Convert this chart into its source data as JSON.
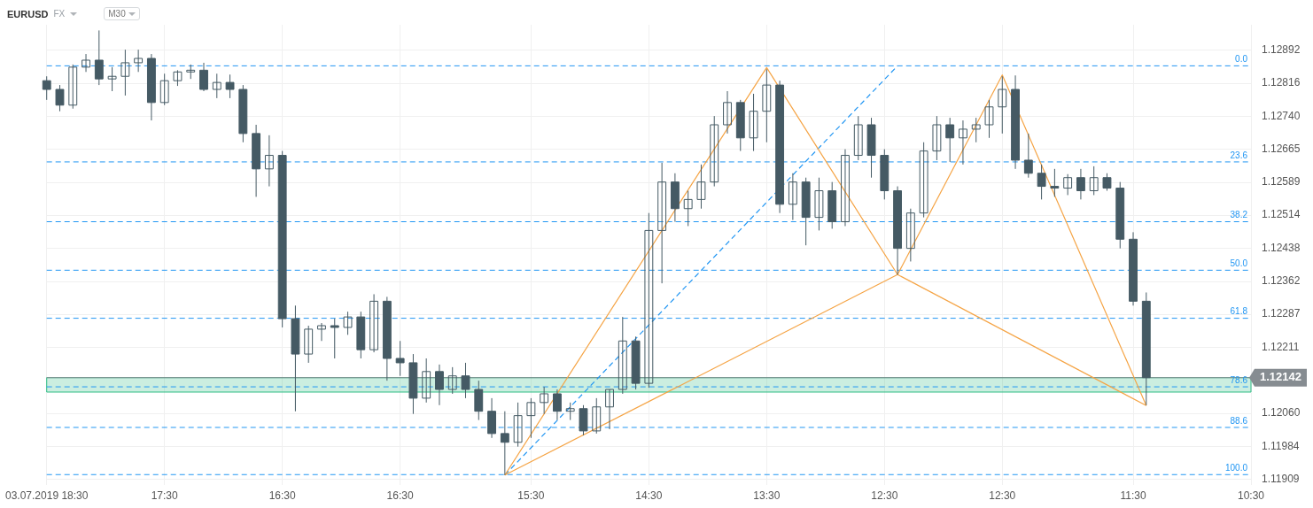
{
  "chart_data": {
    "type": "candlestick",
    "title": "EURUSD",
    "subtitle": "FX",
    "color": "#455a64",
    "annotations": [
      "M30",
      {
        "text": "0.0",
        "y": 1.12856
      },
      {
        "text": "23.6",
        "y": 1.12636
      },
      {
        "text": "38.2",
        "y": 1.12499
      },
      {
        "text": "50.0",
        "y": 1.12388
      },
      {
        "text": "61.8",
        "y": 1.12278
      },
      {
        "text": "78.6",
        "y": 1.12121
      },
      {
        "text": "88.6",
        "y": 1.12028
      },
      {
        "text": "100.0",
        "y": 1.1192
      }
    ],
    "categories": [
      "03.07.2019 18:30",
      null,
      null,
      null,
      null,
      null,
      null,
      null,
      null,
      "17:30",
      null,
      null,
      null,
      null,
      null,
      null,
      null,
      null,
      "16:30",
      null,
      null,
      null,
      null,
      null,
      null,
      null,
      null,
      "16:30",
      null,
      null,
      null,
      null,
      null,
      null,
      null,
      null,
      null,
      "15:30",
      null,
      null,
      null,
      null,
      null,
      null,
      null,
      null,
      "14:30",
      null,
      null,
      null,
      null,
      null,
      null,
      null,
      null,
      "13:30",
      null,
      null,
      null,
      null,
      null,
      null,
      null,
      null,
      "12:30",
      null,
      null,
      null,
      null,
      null,
      null,
      null,
      null,
      "12:30",
      null,
      null,
      null,
      null,
      null,
      null,
      null,
      null,
      null,
      "11:30",
      null,
      null,
      null,
      null,
      null,
      null,
      null,
      null,
      "10:30"
    ],
    "ohlc": [
      [
        1.12822,
        1.12832,
        1.12778,
        1.12802
      ],
      [
        1.12802,
        1.12812,
        1.12752,
        1.12766
      ],
      [
        1.12766,
        1.12859,
        1.12758,
        1.12853
      ],
      [
        1.12853,
        1.12883,
        1.12842,
        1.12869
      ],
      [
        1.12869,
        1.12937,
        1.12812,
        1.12826
      ],
      [
        1.12826,
        1.12853,
        1.12798,
        1.12832
      ],
      [
        1.12832,
        1.12893,
        1.12788,
        1.12863
      ],
      [
        1.12863,
        1.12893,
        1.12842,
        1.12873
      ],
      [
        1.12873,
        1.12883,
        1.12731,
        1.12772
      ],
      [
        1.12772,
        1.12838,
        1.12766,
        1.12822
      ],
      [
        1.12822,
        1.12846,
        1.1281,
        1.12842
      ],
      [
        1.12842,
        1.12859,
        1.12826,
        1.12846
      ],
      [
        1.12846,
        1.12863,
        1.12798,
        1.12802
      ],
      [
        1.12802,
        1.12838,
        1.12782,
        1.12818
      ],
      [
        1.12818,
        1.12836,
        1.12782,
        1.12802
      ],
      [
        1.12802,
        1.12812,
        1.12681,
        1.12701
      ],
      [
        1.12701,
        1.12721,
        1.12556,
        1.1262
      ],
      [
        1.1262,
        1.12697,
        1.1258,
        1.12651
      ],
      [
        1.12651,
        1.12661,
        1.12257,
        1.12277
      ],
      [
        1.12277,
        1.12307,
        1.12065,
        1.12196
      ],
      [
        1.12196,
        1.12261,
        1.12176,
        1.12253
      ],
      [
        1.12253,
        1.12267,
        1.12226,
        1.12261
      ],
      [
        1.12261,
        1.12277,
        1.12186,
        1.12257
      ],
      [
        1.12257,
        1.12293,
        1.1224,
        1.12281
      ],
      [
        1.12281,
        1.12293,
        1.12186,
        1.12206
      ],
      [
        1.12206,
        1.12333,
        1.122,
        1.12317
      ],
      [
        1.12317,
        1.12327,
        1.12135,
        1.12186
      ],
      [
        1.12186,
        1.12226,
        1.12146,
        1.12176
      ],
      [
        1.12176,
        1.12196,
        1.12059,
        1.12095
      ],
      [
        1.12095,
        1.12186,
        1.12085,
        1.12156
      ],
      [
        1.12156,
        1.12172,
        1.12079,
        1.12115
      ],
      [
        1.12115,
        1.12166,
        1.12105,
        1.12146
      ],
      [
        1.12146,
        1.12176,
        1.12095,
        1.12115
      ],
      [
        1.12115,
        1.12135,
        1.12045,
        1.12065
      ],
      [
        1.12065,
        1.12095,
        1.12004,
        1.12014
      ],
      [
        1.12014,
        1.12065,
        1.11919,
        1.11994
      ],
      [
        1.11994,
        1.12085,
        1.11984,
        1.12055
      ],
      [
        1.12055,
        1.12095,
        1.12004,
        1.12085
      ],
      [
        1.12085,
        1.12121,
        1.12059,
        1.12105
      ],
      [
        1.12105,
        1.12115,
        1.12045,
        1.12065
      ],
      [
        1.12065,
        1.12085,
        1.12045,
        1.12071
      ],
      [
        1.12071,
        1.12079,
        1.1201,
        1.1202
      ],
      [
        1.1202,
        1.12095,
        1.12014,
        1.12075
      ],
      [
        1.12075,
        1.12115,
        1.12024,
        1.12115
      ],
      [
        1.12115,
        1.12281,
        1.12105,
        1.12226
      ],
      [
        1.12226,
        1.12236,
        1.12115,
        1.12129
      ],
      [
        1.12129,
        1.12519,
        1.12119,
        1.12479
      ],
      [
        1.12479,
        1.12634,
        1.12358,
        1.1259
      ],
      [
        1.1259,
        1.1261,
        1.12499,
        1.12529
      ],
      [
        1.12529,
        1.1257,
        1.12489,
        1.1255
      ],
      [
        1.1255,
        1.1263,
        1.12529,
        1.1259
      ],
      [
        1.1259,
        1.12741,
        1.1258,
        1.12721
      ],
      [
        1.12721,
        1.12798,
        1.12701,
        1.12772
      ],
      [
        1.12772,
        1.12778,
        1.12661,
        1.12691
      ],
      [
        1.12691,
        1.12792,
        1.12661,
        1.12752
      ],
      [
        1.12752,
        1.12848,
        1.12681,
        1.12812
      ],
      [
        1.12812,
        1.12822,
        1.12519,
        1.12539
      ],
      [
        1.12539,
        1.1261,
        1.12503,
        1.1259
      ],
      [
        1.1259,
        1.126,
        1.12445,
        1.12509
      ],
      [
        1.12509,
        1.126,
        1.12479,
        1.1257
      ],
      [
        1.1257,
        1.1259,
        1.12483,
        1.12499
      ],
      [
        1.12499,
        1.12665,
        1.12489,
        1.12651
      ],
      [
        1.12651,
        1.12741,
        1.1264,
        1.12721
      ],
      [
        1.12721,
        1.12737,
        1.126,
        1.12651
      ],
      [
        1.12651,
        1.12665,
        1.1255,
        1.1257
      ],
      [
        1.1257,
        1.1258,
        1.12378,
        1.12438
      ],
      [
        1.12438,
        1.12529,
        1.12408,
        1.12519
      ],
      [
        1.12519,
        1.12681,
        1.12509,
        1.12661
      ],
      [
        1.12661,
        1.12741,
        1.1264,
        1.12721
      ],
      [
        1.12721,
        1.12737,
        1.12636,
        1.12691
      ],
      [
        1.12691,
        1.12731,
        1.1263,
        1.12711
      ],
      [
        1.12711,
        1.12737,
        1.12681,
        1.12721
      ],
      [
        1.12721,
        1.12778,
        1.12691,
        1.12762
      ],
      [
        1.12762,
        1.12832,
        1.12701,
        1.12802
      ],
      [
        1.12802,
        1.12834,
        1.1262,
        1.1264
      ],
      [
        1.1264,
        1.12701,
        1.126,
        1.1261
      ],
      [
        1.1261,
        1.1263,
        1.1255,
        1.1258
      ],
      [
        1.1258,
        1.1262,
        1.12556,
        1.12576
      ],
      [
        1.12576,
        1.12608,
        1.1256,
        1.126
      ],
      [
        1.126,
        1.1262,
        1.1255,
        1.1257
      ],
      [
        1.1257,
        1.12626,
        1.1256,
        1.126
      ],
      [
        1.126,
        1.1261,
        1.1257,
        1.12576
      ],
      [
        1.12576,
        1.1259,
        1.12438,
        1.12459
      ],
      [
        1.12459,
        1.12475,
        1.12307,
        1.12317
      ],
      [
        1.12317,
        1.12337,
        1.12079,
        1.12142
      ],
      null,
      null,
      null,
      null,
      null,
      null,
      null,
      null
    ],
    "series": [
      {
        "type": "line",
        "color": "#f5a445",
        "values": [
          null,
          null,
          null,
          null,
          null,
          null,
          null,
          null,
          null,
          null,
          null,
          null,
          null,
          null,
          null,
          null,
          null,
          null,
          null,
          null,
          null,
          null,
          null,
          null,
          null,
          null,
          null,
          null,
          null,
          null,
          null,
          null,
          null,
          null,
          null,
          1.11919,
          null,
          null,
          null,
          null,
          null,
          null,
          null,
          null,
          null,
          null,
          null,
          null,
          null,
          null,
          null,
          null,
          null,
          null,
          null,
          1.12852,
          null,
          null,
          null,
          null,
          null,
          null,
          null,
          null,
          null,
          1.12378,
          null,
          null,
          null,
          null,
          null,
          null,
          null,
          1.12835,
          null,
          null,
          null,
          null,
          null,
          null,
          null,
          null,
          null,
          null,
          1.12078,
          null,
          null,
          null,
          null,
          null,
          null,
          null,
          null
        ]
      },
      {
        "type": "line",
        "color": "#f5a445",
        "values": [
          null,
          null,
          null,
          null,
          null,
          null,
          null,
          null,
          null,
          null,
          null,
          null,
          null,
          null,
          null,
          null,
          null,
          null,
          null,
          null,
          null,
          null,
          null,
          null,
          null,
          null,
          null,
          null,
          null,
          null,
          null,
          null,
          null,
          null,
          null,
          1.11919,
          null,
          null,
          null,
          null,
          null,
          null,
          null,
          null,
          null,
          null,
          null,
          null,
          null,
          null,
          null,
          null,
          null,
          null,
          null,
          null,
          null,
          null,
          null,
          null,
          null,
          null,
          null,
          null,
          null,
          1.12378,
          null,
          null,
          null,
          null,
          null,
          null,
          null,
          null,
          null,
          null,
          null,
          null,
          null,
          null,
          null,
          null,
          null,
          null,
          1.12078,
          null,
          null,
          null,
          null,
          null,
          null,
          null,
          null
        ]
      },
      {
        "type": "line",
        "color": "#2196f3",
        "line_style": "dashed",
        "values": [
          null,
          null,
          null,
          null,
          null,
          null,
          null,
          null,
          null,
          null,
          null,
          null,
          null,
          null,
          null,
          null,
          null,
          null,
          null,
          null,
          null,
          null,
          null,
          null,
          null,
          null,
          null,
          null,
          null,
          null,
          null,
          null,
          null,
          null,
          null,
          1.11919,
          null,
          null,
          null,
          null,
          null,
          null,
          null,
          null,
          null,
          null,
          null,
          null,
          null,
          null,
          null,
          null,
          null,
          null,
          null,
          null,
          null,
          null,
          null,
          null,
          null,
          null,
          null,
          null,
          null,
          1.12856,
          null,
          null,
          null,
          null,
          null,
          null,
          null,
          null,
          null,
          null,
          null,
          null,
          null,
          null,
          null,
          null,
          null,
          null,
          null,
          null,
          null,
          null,
          null,
          null,
          null,
          null,
          null
        ]
      }
    ],
    "ylim": [
      1.11897,
      1.1295
    ],
    "yticks": [
      1.11909,
      1.11984,
      {
        "value": 1.1206,
        "label": "1.12060"
      },
      1.12211,
      1.12287,
      1.12362,
      1.12438,
      1.12514,
      1.12589,
      1.12665,
      {
        "value": 1.1274,
        "label": "1.12740"
      },
      1.12816,
      1.12892
    ],
    "grid": true,
    "bands": [
      {
        "axis": "y",
        "from": 1.12109,
        "to": 1.12142,
        "color": "#2ebd85"
      }
    ],
    "ref_lines": [
      {
        "axis": "y",
        "value": 1.12142,
        "label": "1.12142",
        "color": "#868c91"
      },
      {
        "axis": "y",
        "value": 1.12856,
        "color": "#2196f3",
        "line_style": "dashed"
      },
      {
        "axis": "y",
        "value": 1.12636,
        "color": "#2196f3",
        "line_style": "dashed"
      },
      {
        "axis": "y",
        "value": 1.12499,
        "color": "#2196f3",
        "line_style": "dashed"
      },
      {
        "axis": "y",
        "value": 1.12388,
        "color": "#2196f3",
        "line_style": "dashed"
      },
      {
        "axis": "y",
        "value": 1.12278,
        "color": "#2196f3",
        "line_style": "dashed"
      },
      {
        "axis": "y",
        "value": 1.12121,
        "color": "#2196f3",
        "line_style": "dashed"
      },
      {
        "axis": "y",
        "value": 1.12028,
        "color": "#2196f3",
        "line_style": "dashed"
      },
      {
        "axis": "y",
        "value": 1.1192,
        "color": "#2196f3",
        "line_style": "dashed"
      }
    ]
  }
}
